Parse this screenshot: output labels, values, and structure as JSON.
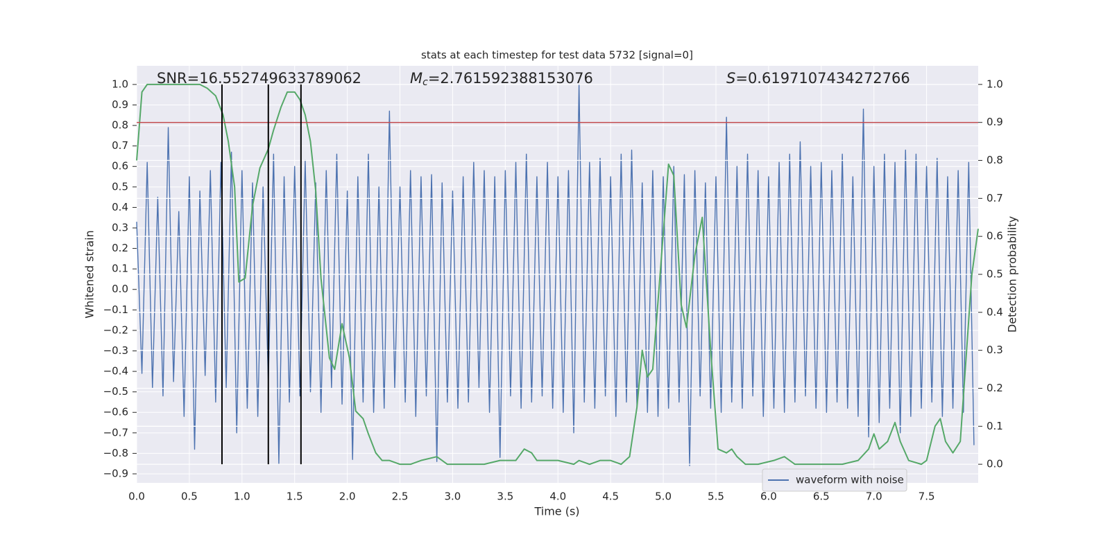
{
  "chart_data": {
    "type": "line",
    "title": "stats at each timestep for test data 5732 [signal=0]",
    "x_label": "Time (s)",
    "y_label": "Whitened strain",
    "y2_label": "Detection probability",
    "xlim": [
      0,
      7.99
    ],
    "ylim": [
      -0.944,
      1.091
    ],
    "y2lim": [
      -0.049,
      1.049
    ],
    "grid": true,
    "legend_loc": "lower right",
    "xticks": [
      {
        "value": 0,
        "label": "0.0"
      },
      0.5,
      {
        "value": 1,
        "label": "1.0"
      },
      1.5,
      {
        "value": 2,
        "label": "2.0"
      },
      2.5,
      {
        "value": 3,
        "label": "3.0"
      },
      3.5,
      {
        "value": 4,
        "label": "4.0"
      },
      4.5,
      {
        "value": 5,
        "label": "5.0"
      },
      5.5,
      {
        "value": 6,
        "label": "6.0"
      },
      6.5,
      {
        "value": 7,
        "label": "7.0"
      },
      7.5
    ],
    "yticks": [
      {
        "value": -0.9,
        "label": "−0.9"
      },
      {
        "value": -0.8,
        "label": "−0.8"
      },
      {
        "value": -0.7,
        "label": "−0.7"
      },
      {
        "value": -0.6,
        "label": "−0.6"
      },
      {
        "value": -0.5,
        "label": "−0.5"
      },
      {
        "value": -0.4,
        "label": "−0.4"
      },
      {
        "value": -0.3,
        "label": "−0.3"
      },
      {
        "value": -0.2,
        "label": "−0.2"
      },
      {
        "value": -0.1,
        "label": "−0.1"
      },
      {
        "value": 0,
        "label": "0.0"
      },
      0.1,
      0.2,
      0.3,
      0.4,
      0.5,
      0.6,
      0.7,
      0.8,
      0.9,
      {
        "value": 1,
        "label": "1.0"
      }
    ],
    "y2ticks": [
      {
        "value": 0,
        "label": "0.0"
      },
      0.1,
      0.2,
      0.3,
      0.4,
      0.5,
      0.6,
      0.7,
      0.8,
      0.9,
      {
        "value": 1,
        "label": "1.0"
      }
    ],
    "annotations": [
      {
        "text": "SNR=16.552749633789062"
      },
      {
        "symbol": "M",
        "subscript": "c",
        "text": "=2.761592388153076"
      },
      {
        "symbol": "S",
        "text": "=0.6197107434272766"
      }
    ],
    "threshold": {
      "value": 0.9,
      "color": "#c44e52",
      "axis": "y2"
    },
    "vlines": {
      "x": [
        0.81,
        1.25,
        1.56
      ],
      "range": [
        0,
        1
      ],
      "color": "#000000",
      "axis": "y2"
    },
    "series": [
      {
        "name": "waveform with noise",
        "color": "#4c72b0",
        "x": [
          0,
          0.05,
          0.1,
          0.15,
          0.2,
          0.25,
          0.3,
          0.35,
          0.4,
          0.45,
          0.5,
          0.55,
          0.6,
          0.65,
          0.7,
          0.75,
          0.8,
          0.85,
          0.9,
          0.95,
          1,
          1.05,
          1.1,
          1.15,
          1.2,
          1.25,
          1.3,
          1.35,
          1.4,
          1.45,
          1.5,
          1.55,
          1.6,
          1.65,
          1.7,
          1.75,
          1.8,
          1.85,
          1.9,
          1.95,
          2,
          2.05,
          2.1,
          2.15,
          2.2,
          2.25,
          2.3,
          2.35,
          2.4,
          2.45,
          2.5,
          2.55,
          2.6,
          2.65,
          2.7,
          2.75,
          2.8,
          2.85,
          2.9,
          2.95,
          3,
          3.05,
          3.1,
          3.15,
          3.2,
          3.25,
          3.3,
          3.35,
          3.4,
          3.45,
          3.5,
          3.55,
          3.6,
          3.65,
          3.7,
          3.75,
          3.8,
          3.85,
          3.9,
          3.95,
          4,
          4.05,
          4.1,
          4.15,
          4.2,
          4.25,
          4.3,
          4.35,
          4.4,
          4.45,
          4.5,
          4.55,
          4.6,
          4.65,
          4.7,
          4.75,
          4.8,
          4.85,
          4.9,
          4.95,
          5,
          5.05,
          5.1,
          5.15,
          5.2,
          5.25,
          5.3,
          5.35,
          5.4,
          5.45,
          5.5,
          5.55,
          5.6,
          5.65,
          5.7,
          5.75,
          5.8,
          5.85,
          5.9,
          5.95,
          6,
          6.05,
          6.1,
          6.15,
          6.2,
          6.25,
          6.3,
          6.35,
          6.4,
          6.45,
          6.5,
          6.55,
          6.6,
          6.65,
          6.7,
          6.75,
          6.8,
          6.85,
          6.9,
          6.95,
          7,
          7.05,
          7.1,
          7.15,
          7.2,
          7.25,
          7.3,
          7.35,
          7.4,
          7.45,
          7.5,
          7.55,
          7.6,
          7.65,
          7.7,
          7.75,
          7.8,
          7.85,
          7.9,
          7.95
        ],
        "values": [
          0.33,
          -0.41,
          0.62,
          -0.48,
          0.45,
          -0.52,
          0.79,
          -0.45,
          0.38,
          -0.62,
          0.55,
          -0.78,
          0.48,
          -0.42,
          0.58,
          -0.55,
          0.62,
          -0.48,
          0.67,
          -0.7,
          0.58,
          -0.58,
          0.52,
          -0.62,
          0.5,
          -0.45,
          0.66,
          -0.85,
          0.55,
          -0.55,
          0.6,
          -0.52,
          0.63,
          -0.5,
          0.52,
          -0.6,
          0.58,
          -0.48,
          0.66,
          -0.56,
          0.48,
          -0.83,
          0.55,
          -0.55,
          0.66,
          -0.6,
          0.5,
          -0.58,
          0.87,
          -0.48,
          0.5,
          -0.55,
          0.58,
          -0.62,
          0.55,
          -0.52,
          0.56,
          -0.84,
          0.52,
          -0.55,
          0.48,
          -0.58,
          0.55,
          -0.55,
          0.62,
          -0.48,
          0.58,
          -0.6,
          0.55,
          -0.82,
          0.58,
          -0.52,
          0.62,
          -0.58,
          0.66,
          -0.55,
          0.55,
          -0.52,
          0.62,
          -0.58,
          0.55,
          -0.6,
          0.58,
          -0.7,
          1.0,
          -0.55,
          0.62,
          -0.58,
          0.64,
          -0.52,
          0.55,
          -0.62,
          0.66,
          -0.55,
          0.68,
          -0.58,
          0.52,
          -0.6,
          0.58,
          -0.62,
          0.55,
          -0.58,
          0.6,
          -0.55,
          0.56,
          -0.86,
          0.58,
          -0.52,
          0.52,
          -0.58,
          0.55,
          -0.6,
          0.84,
          -0.55,
          0.6,
          -0.58,
          0.66,
          -0.52,
          0.58,
          -0.62,
          0.55,
          -0.58,
          0.62,
          -0.6,
          0.66,
          -0.55,
          0.72,
          -0.52,
          0.6,
          -0.58,
          0.62,
          -0.6,
          0.58,
          -0.55,
          0.66,
          -0.58,
          0.55,
          -0.62,
          0.88,
          -0.72,
          0.6,
          -0.65,
          0.66,
          -0.58,
          0.62,
          -0.7,
          0.68,
          -0.62,
          0.66,
          -0.58,
          0.6,
          -0.55,
          0.64,
          -0.62,
          0.55,
          -0.58,
          0.58,
          -0.6,
          0.62,
          -0.76
        ]
      },
      {
        "color": "#55a868",
        "axis": "y2",
        "x": [
          0,
          0.05,
          0.1,
          0.2,
          0.4,
          0.6,
          0.67,
          0.75,
          0.82,
          0.87,
          0.93,
          0.97,
          1.03,
          1.1,
          1.17,
          1.25,
          1.3,
          1.37,
          1.43,
          1.5,
          1.55,
          1.6,
          1.65,
          1.7,
          1.75,
          1.83,
          1.88,
          1.95,
          2.02,
          2.08,
          2.15,
          2.2,
          2.27,
          2.33,
          2.4,
          2.5,
          2.6,
          2.7,
          2.85,
          2.95,
          3.1,
          3.3,
          3.45,
          3.6,
          3.68,
          3.75,
          3.8,
          3.9,
          4,
          4.15,
          4.2,
          4.3,
          4.4,
          4.5,
          4.6,
          4.68,
          4.75,
          4.8,
          4.85,
          4.9,
          4.97,
          5.05,
          5.1,
          5.17,
          5.22,
          5.3,
          5.37,
          5.45,
          5.52,
          5.6,
          5.65,
          5.7,
          5.78,
          5.9,
          6.05,
          6.15,
          6.25,
          6.35,
          6.5,
          6.7,
          6.85,
          6.95,
          7,
          7.05,
          7.13,
          7.2,
          7.25,
          7.33,
          7.45,
          7.5,
          7.58,
          7.63,
          7.68,
          7.75,
          7.82,
          7.93,
          7.99
        ],
        "values": [
          0.8,
          0.98,
          1.0,
          1.0,
          1.0,
          1.0,
          0.99,
          0.97,
          0.92,
          0.85,
          0.73,
          0.48,
          0.49,
          0.68,
          0.78,
          0.83,
          0.88,
          0.94,
          0.98,
          0.98,
          0.96,
          0.92,
          0.85,
          0.72,
          0.49,
          0.28,
          0.25,
          0.37,
          0.28,
          0.14,
          0.12,
          0.08,
          0.03,
          0.01,
          0.01,
          0.0,
          0.0,
          0.01,
          0.02,
          0.0,
          0.0,
          0.0,
          0.01,
          0.01,
          0.04,
          0.03,
          0.01,
          0.01,
          0.01,
          0.0,
          0.01,
          0.0,
          0.01,
          0.01,
          0.0,
          0.02,
          0.15,
          0.3,
          0.23,
          0.25,
          0.5,
          0.79,
          0.76,
          0.42,
          0.36,
          0.55,
          0.65,
          0.3,
          0.04,
          0.03,
          0.04,
          0.02,
          0.0,
          0.0,
          0.01,
          0.02,
          0.0,
          0.0,
          0.0,
          0.0,
          0.01,
          0.04,
          0.08,
          0.04,
          0.06,
          0.11,
          0.06,
          0.01,
          0.0,
          0.01,
          0.1,
          0.12,
          0.06,
          0.03,
          0.06,
          0.5,
          0.62
        ]
      }
    ]
  }
}
